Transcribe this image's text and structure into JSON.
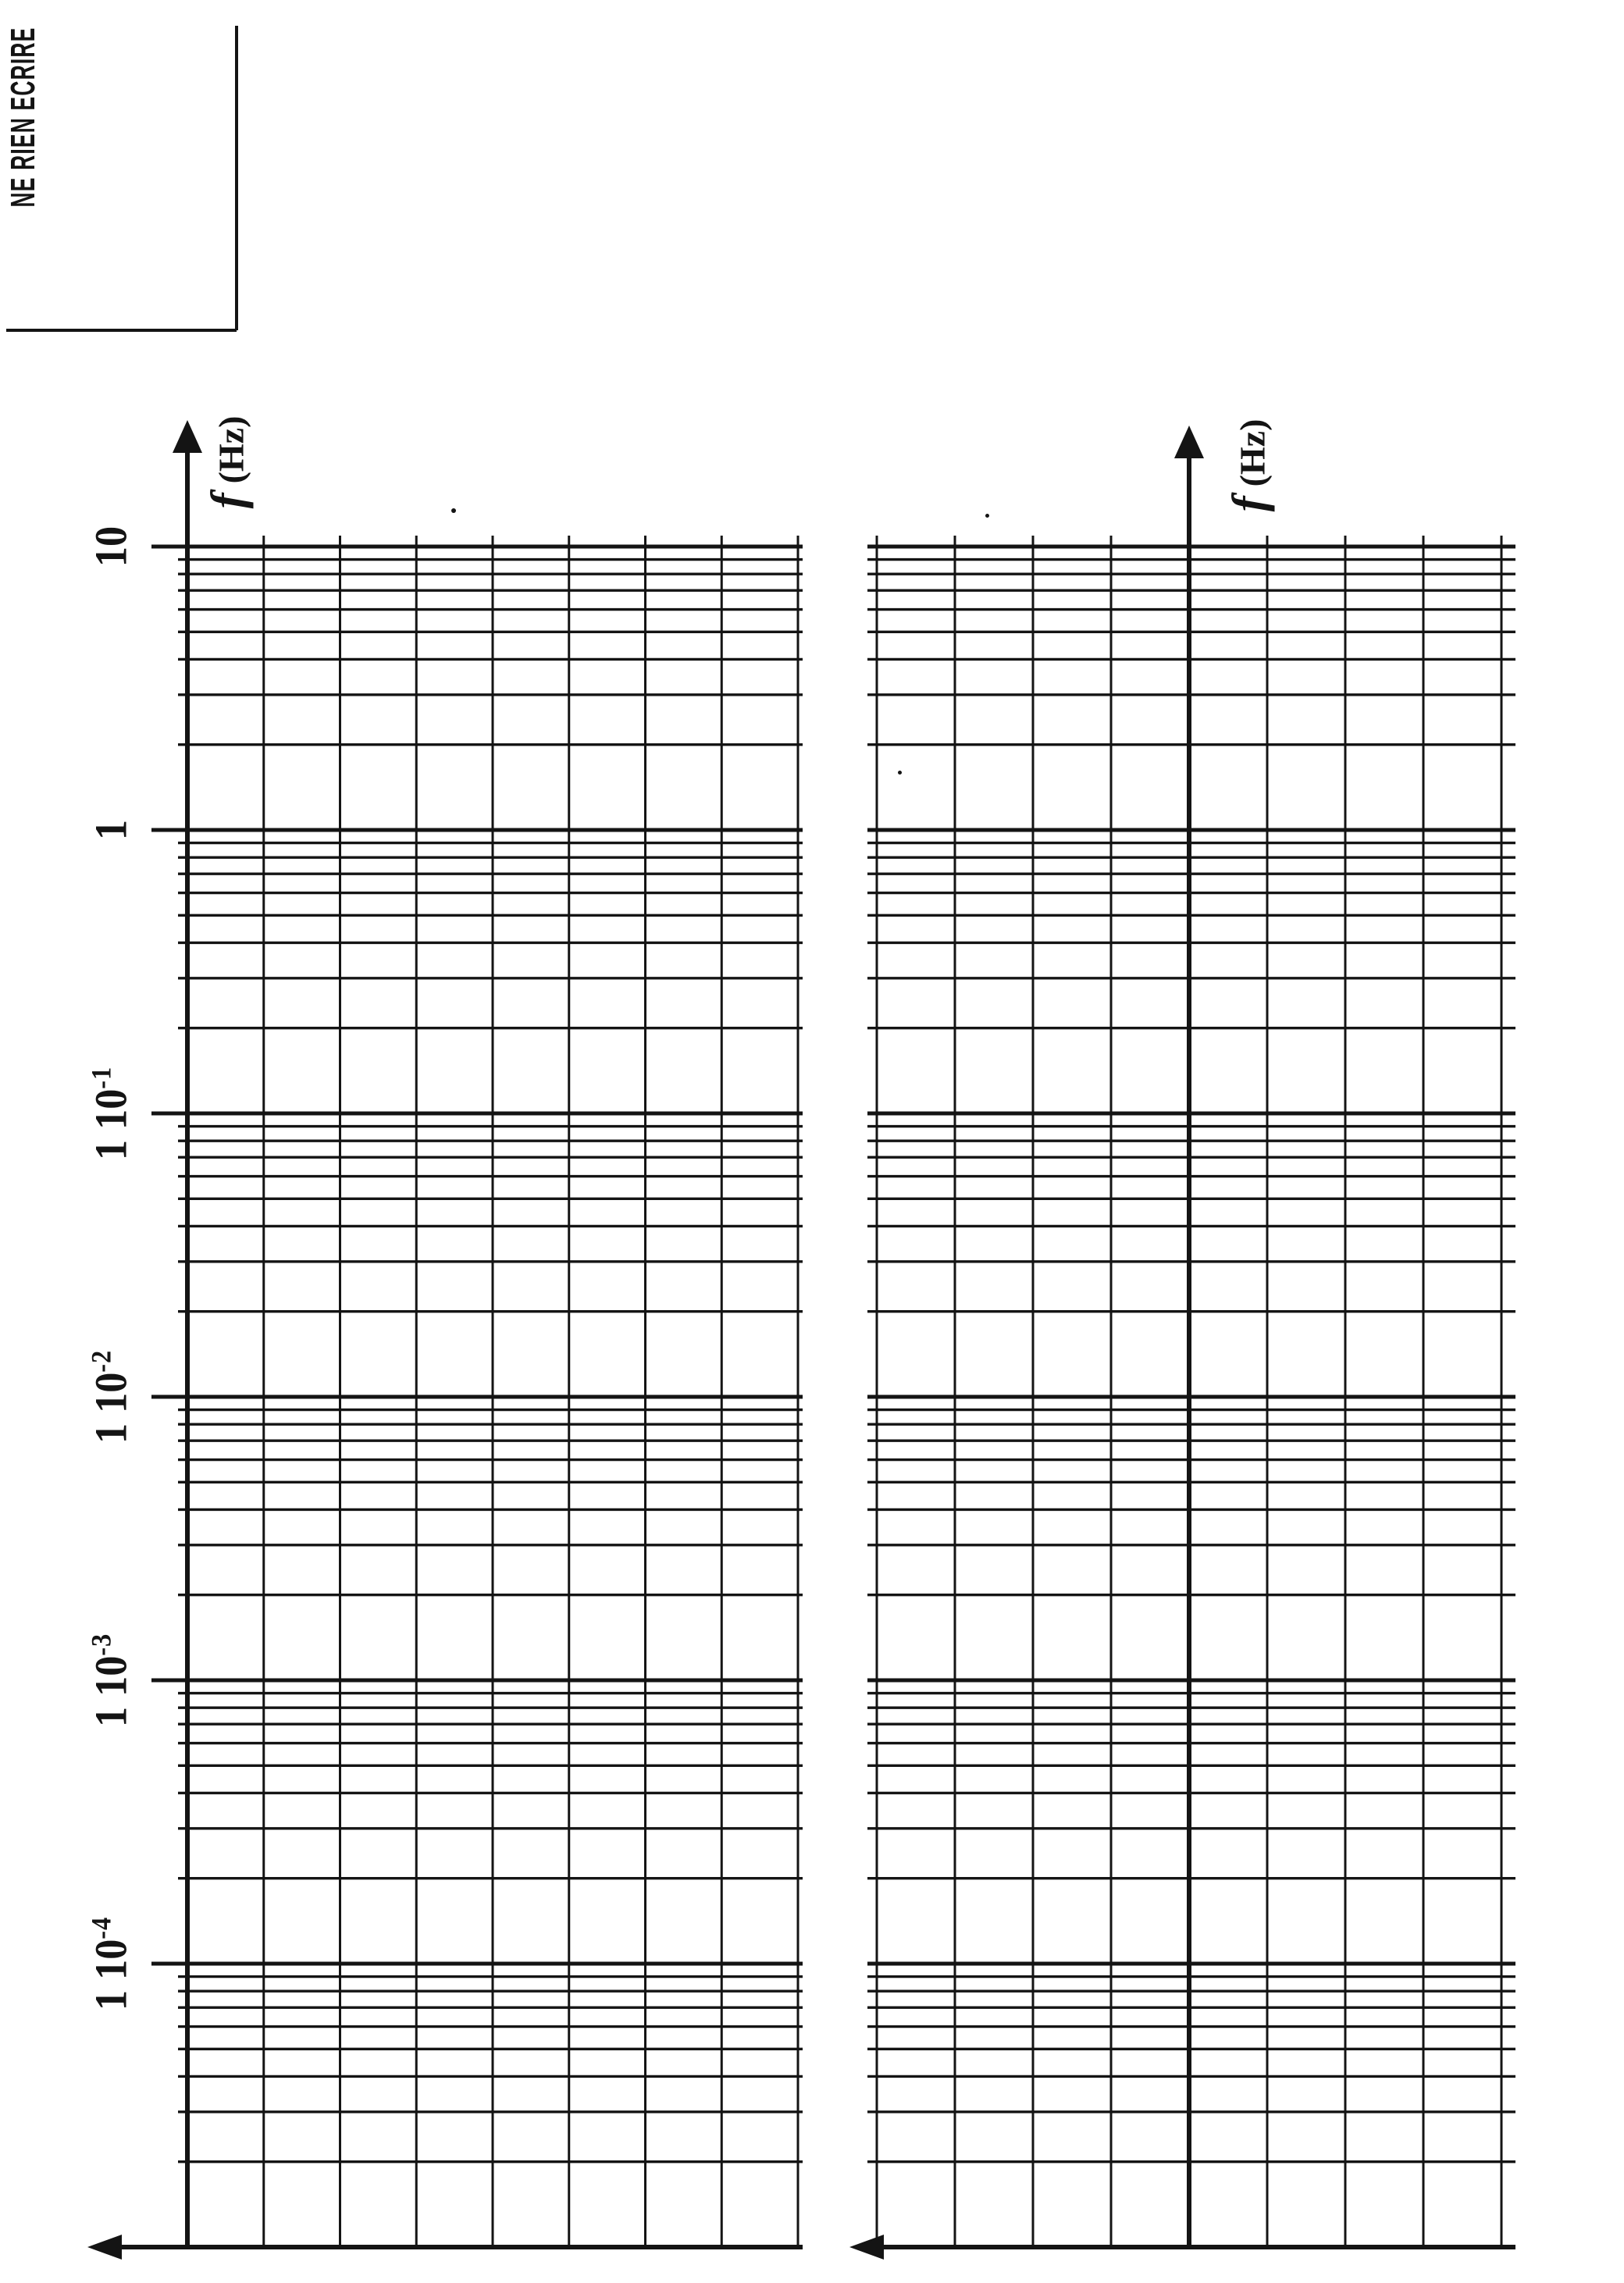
{
  "colors": {
    "paper": "#ffffff",
    "ink": "#141414"
  },
  "corner_box": {
    "label": "NE RIEN ECRIRE"
  },
  "graphs": [
    {
      "name": "top-frequency-grid",
      "axis_label_f": "f",
      "axis_label_unit": "(Hz)",
      "axis_position": "left-edge",
      "ticks": [
        {
          "pre": "10",
          "sup": ""
        },
        {
          "pre": "1",
          "sup": ""
        },
        {
          "pre": "1 10",
          "sup": "-1"
        },
        {
          "pre": "1 10",
          "sup": "-2"
        },
        {
          "pre": "1 10",
          "sup": "-3"
        },
        {
          "pre": "1 10",
          "sup": "-4"
        }
      ]
    },
    {
      "name": "bottom-frequency-grid",
      "axis_label_f": "f",
      "axis_label_unit": "(Hz)",
      "axis_position": "center",
      "ticks": []
    }
  ],
  "chart_data": [
    {
      "type": "line",
      "title": "",
      "xlabel": "",
      "ylabel": "f (Hz)",
      "y_scale": "log",
      "y_range": [
        1e-05,
        10
      ],
      "y_tick_labels": [
        "10",
        "1",
        "1 10^-1",
        "1 10^-2",
        "1 10^-3",
        "1 10^-4"
      ],
      "y_tick_values": [
        10,
        1,
        0.1,
        0.01,
        0.001,
        0.0001
      ],
      "decades": 6,
      "x_divisions": 8,
      "grid": true,
      "legend": false,
      "series": [],
      "note": "Blank semi-log grid (Bode template); page scanned rotated 90 deg so frequency axis is vertical; f-axis with arrow at left edge of grid; arrow on bottom axis points left"
    },
    {
      "type": "line",
      "title": "",
      "xlabel": "",
      "ylabel": "f (Hz)",
      "y_scale": "log",
      "y_range": [
        1e-05,
        10
      ],
      "y_tick_labels": [],
      "y_tick_values": [
        10,
        1,
        0.1,
        0.01,
        0.001,
        0.0001
      ],
      "decades": 6,
      "x_divisions": 8,
      "grid": true,
      "legend": false,
      "series": [],
      "note": "Blank semi-log grid identical to first; frequency axis with arrow runs through the center column of the grid; no tick labels"
    }
  ]
}
